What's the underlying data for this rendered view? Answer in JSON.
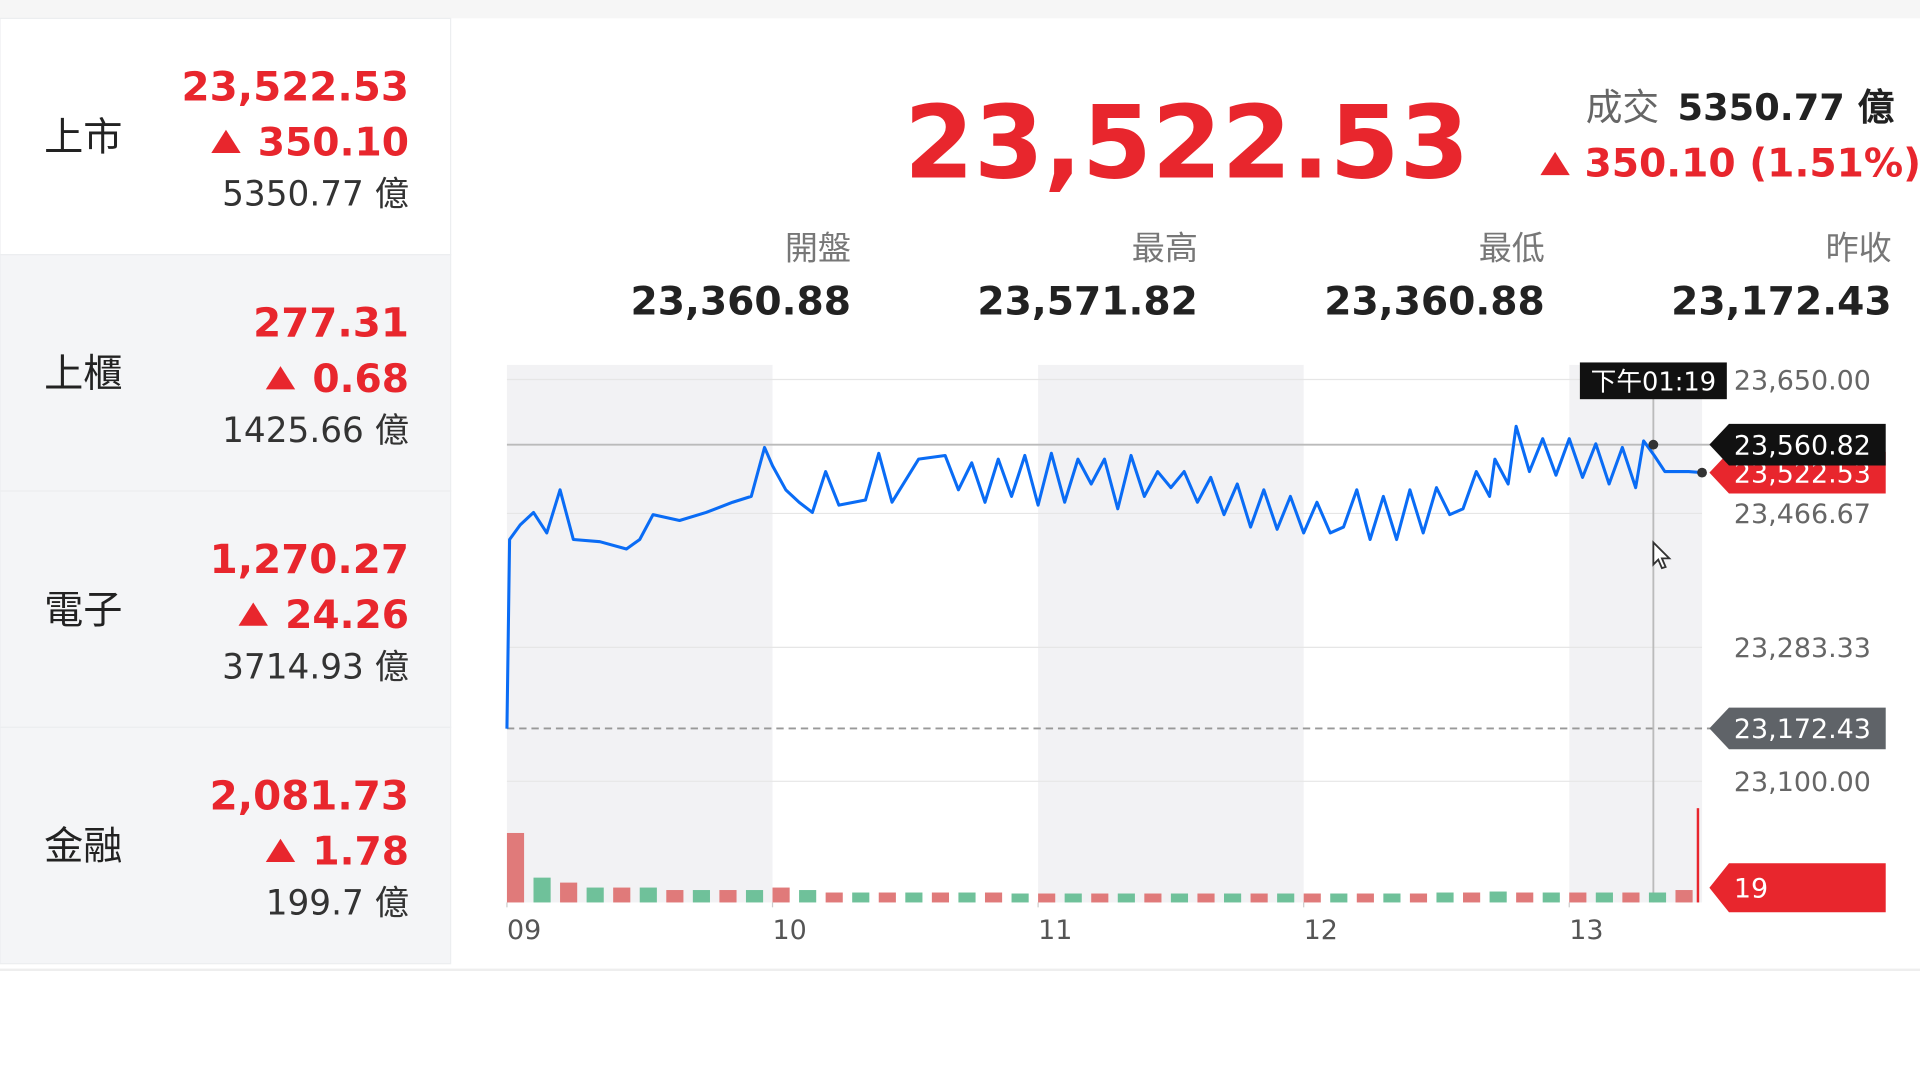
{
  "markets": [
    {
      "name": "上市",
      "value": "23,522.53",
      "change": "350.10",
      "volume": "5350.77 億"
    },
    {
      "name": "上櫃",
      "value": "277.31",
      "change": "0.68",
      "volume": "1425.66 億"
    },
    {
      "name": "電子",
      "value": "1,270.27",
      "change": "24.26",
      "volume": "3714.93 億"
    },
    {
      "name": "金融",
      "value": "2,081.73",
      "change": "1.78",
      "volume": "199.7 億"
    }
  ],
  "header": {
    "price": "23,522.53",
    "turnover_label": "成交",
    "turnover": "5350.77 億",
    "change": "350.10 (1.51%)"
  },
  "stats": [
    {
      "label": "開盤",
      "value": "23,360.88"
    },
    {
      "label": "最高",
      "value": "23,571.82"
    },
    {
      "label": "最低",
      "value": "23,360.88"
    },
    {
      "label": "昨收",
      "value": "23,172.43"
    }
  ],
  "chart_data": {
    "type": "line",
    "color": "#0a6cf5",
    "x": [
      9,
      9.01,
      9.05,
      9.1,
      9.15,
      9.2,
      9.25,
      9.35,
      9.45,
      9.5,
      9.55,
      9.65,
      9.75,
      9.85,
      9.92,
      9.97,
      10,
      10.05,
      10.1,
      10.15,
      10.2,
      10.25,
      10.35,
      10.4,
      10.45,
      10.55,
      10.65,
      10.7,
      10.75,
      10.8,
      10.85,
      10.9,
      10.95,
      11,
      11.05,
      11.1,
      11.15,
      11.2,
      11.25,
      11.3,
      11.35,
      11.4,
      11.45,
      11.5,
      11.55,
      11.6,
      11.65,
      11.7,
      11.75,
      11.8,
      11.85,
      11.9,
      11.95,
      12,
      12.05,
      12.1,
      12.15,
      12.2,
      12.25,
      12.3,
      12.35,
      12.4,
      12.45,
      12.5,
      12.55,
      12.6,
      12.65,
      12.7,
      12.72,
      12.77,
      12.8,
      12.85,
      12.9,
      12.95,
      13,
      13.05,
      13.1,
      13.15,
      13.2,
      13.25,
      13.28,
      13.32,
      13.36,
      13.45,
      13.5
    ],
    "values": [
      23172,
      23431,
      23451,
      23468,
      23440,
      23499,
      23431,
      23428,
      23418,
      23431,
      23465,
      23457,
      23468,
      23482,
      23490,
      23557,
      23532,
      23499,
      23482,
      23468,
      23524,
      23478,
      23485,
      23549,
      23482,
      23541,
      23546,
      23499,
      23536,
      23482,
      23541,
      23490,
      23546,
      23478,
      23549,
      23482,
      23541,
      23507,
      23541,
      23473,
      23546,
      23490,
      23524,
      23502,
      23524,
      23482,
      23516,
      23465,
      23507,
      23448,
      23499,
      23445,
      23490,
      23440,
      23482,
      23440,
      23448,
      23499,
      23431,
      23490,
      23431,
      23499,
      23440,
      23502,
      23465,
      23473,
      23524,
      23490,
      23541,
      23507,
      23586,
      23524,
      23569,
      23519,
      23569,
      23516,
      23562,
      23507,
      23557,
      23502,
      23566,
      23546,
      23524,
      23524,
      23522.53
    ],
    "xlim": [
      9,
      13.5
    ],
    "xticks": [
      {
        "value": 9,
        "label": "09"
      },
      {
        "value": 10,
        "label": "10"
      },
      {
        "value": 11,
        "label": "11"
      },
      {
        "value": 12,
        "label": "12"
      },
      {
        "value": 13,
        "label": "13"
      }
    ],
    "ylim": [
      23080,
      23670
    ],
    "yticks": [
      {
        "value": 23650,
        "label": "23,650.00"
      },
      {
        "value": 23466.67,
        "label": "23,466.67"
      },
      {
        "value": 23283.33,
        "label": "23,283.33"
      },
      {
        "value": 23100,
        "label": "23,100.00"
      }
    ],
    "grid": true,
    "last": {
      "value": 23522.53,
      "label": "23,522.53",
      "color": "#e8262d"
    },
    "prev_close": {
      "value": 23172.43,
      "label": "23,172.43",
      "color": "#5f6368"
    },
    "hover": {
      "x": 13.3167,
      "time": "下午01:19",
      "value": 23560.82,
      "label": "23,560.82"
    },
    "volume": {
      "color": "#e8262d",
      "colors": [
        "#e07a7a",
        "#6fc19a"
      ],
      "x": [
        9,
        9.1,
        9.2,
        9.3,
        9.4,
        9.5,
        9.6,
        9.7,
        9.8,
        9.9,
        10,
        10.1,
        10.2,
        10.3,
        10.4,
        10.5,
        10.6,
        10.7,
        10.8,
        10.9,
        11,
        11.1,
        11.2,
        11.3,
        11.4,
        11.5,
        11.6,
        11.7,
        11.8,
        11.9,
        12,
        12.1,
        12.2,
        12.3,
        12.4,
        12.5,
        12.6,
        12.7,
        12.8,
        12.9,
        13,
        13.1,
        13.2,
        13.3,
        13.4,
        13.48
      ],
      "values": [
        14,
        5,
        4,
        3,
        3,
        3,
        2.5,
        2.5,
        2.5,
        2.5,
        3,
        2.5,
        2,
        2,
        2,
        2,
        2,
        2,
        2,
        1.8,
        1.8,
        1.8,
        1.8,
        1.8,
        1.8,
        1.8,
        1.8,
        1.8,
        1.8,
        1.8,
        1.8,
        1.8,
        1.8,
        1.8,
        1.8,
        2,
        2,
        2.2,
        2,
        2,
        2,
        2,
        2,
        2,
        2.5,
        19
      ]
    }
  }
}
